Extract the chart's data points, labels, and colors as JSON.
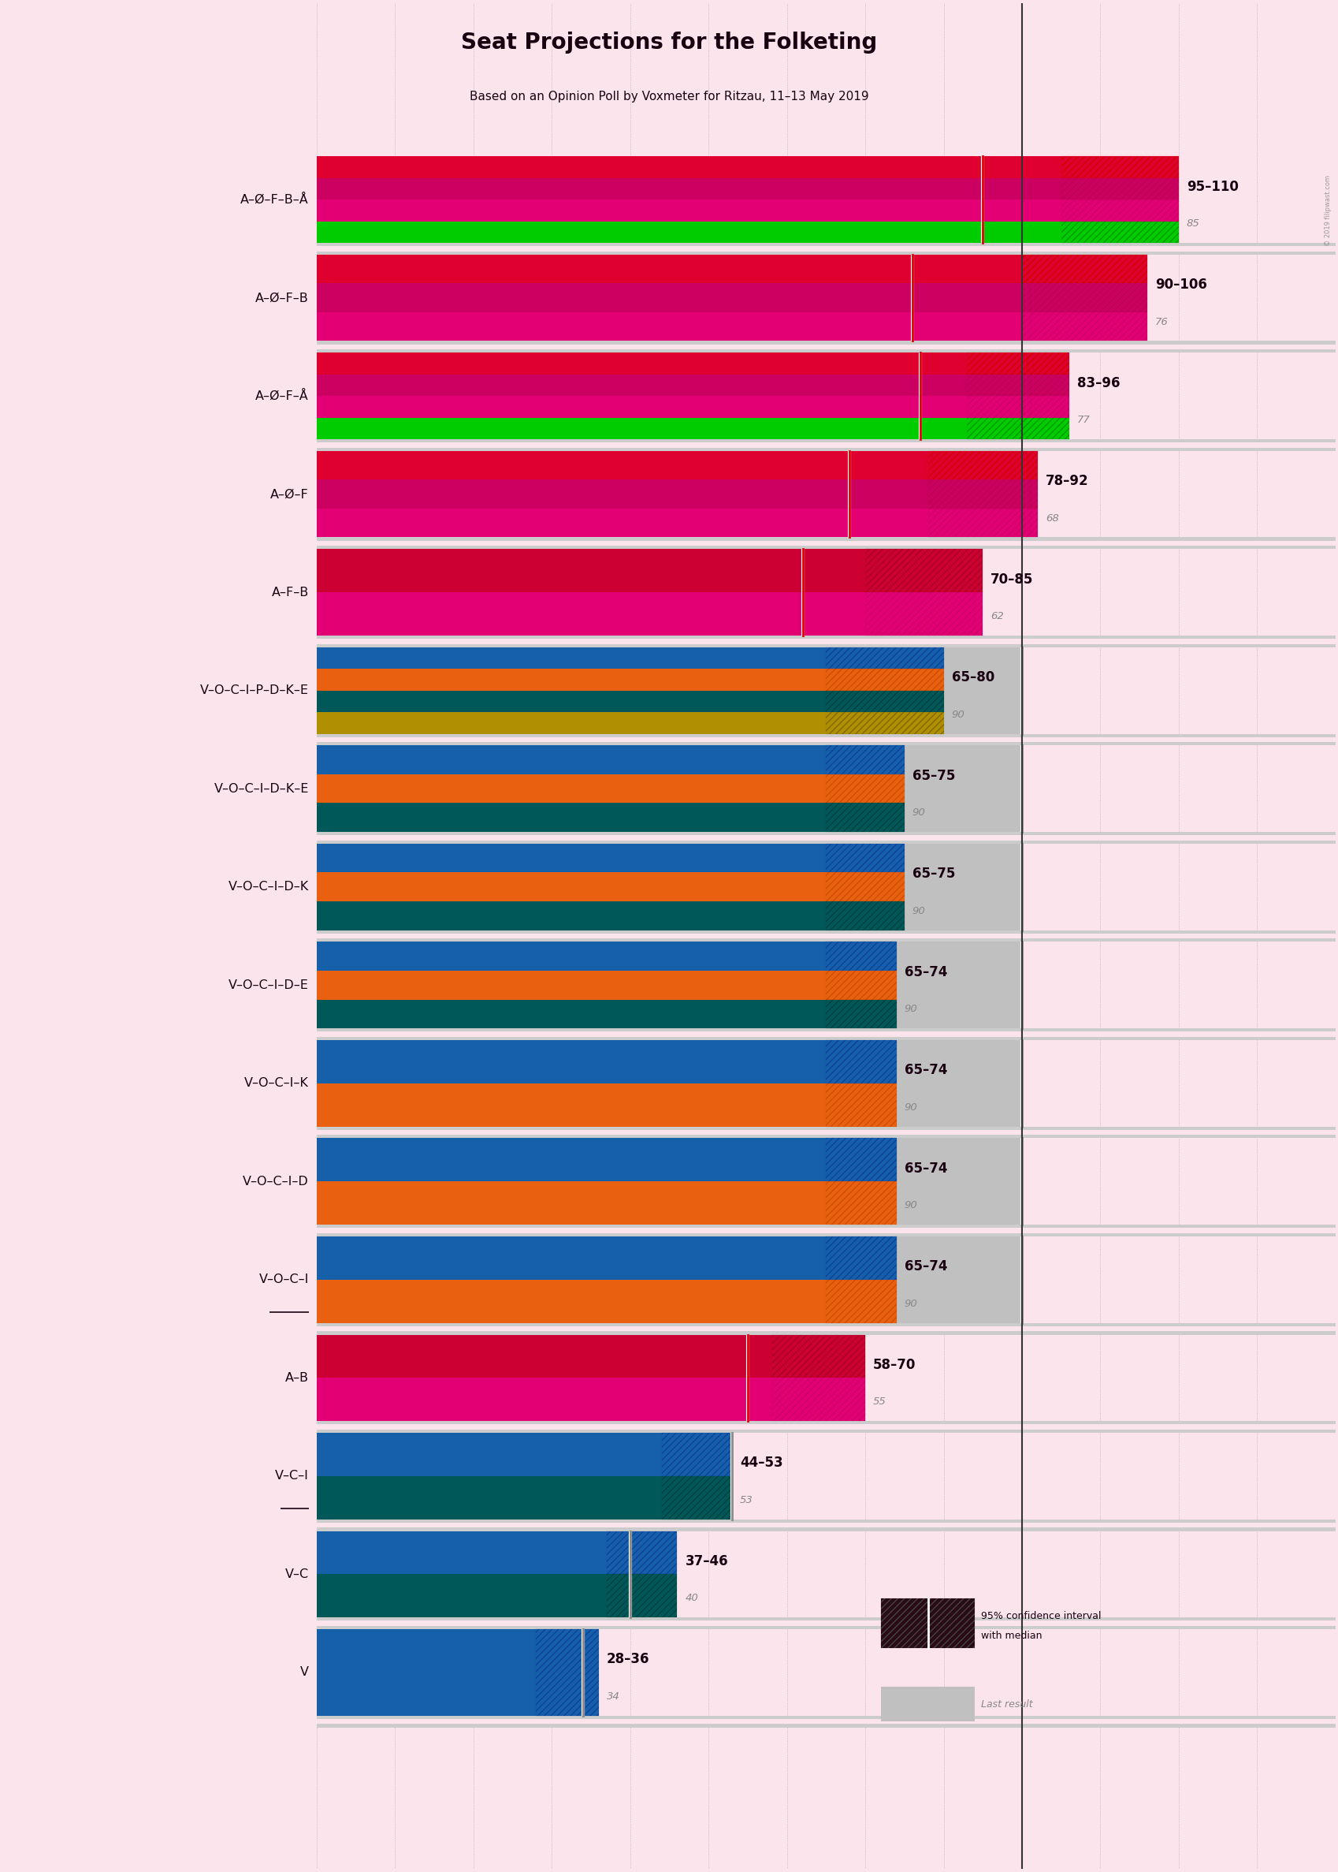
{
  "title": "Seat Projections for the Folketing",
  "subtitle": "Based on an Opinion Poll by Voxmeter for Ritzau, 11–13 May 2019",
  "copyright": "© 2019 filipwast.com",
  "background_color": "#fce4ec",
  "majority_line": 90,
  "x_min": 0,
  "x_max": 120,
  "coalitions": [
    {
      "label": "A–Ø–F–B–Å",
      "ci_low": 95,
      "ci_high": 110,
      "median": 85,
      "last_result": 85,
      "bar_colors": [
        "#e00030",
        "#cc0060",
        "#e20074",
        "#00cc00"
      ],
      "ci_hatch_colors": [
        "#cc0000",
        "#bb0055",
        "#cc0066",
        "#009900"
      ],
      "underline": false,
      "type": "left"
    },
    {
      "label": "A–Ø–F–B",
      "ci_low": 90,
      "ci_high": 106,
      "median": 76,
      "last_result": 76,
      "bar_colors": [
        "#e00030",
        "#cc0060",
        "#e20074"
      ],
      "ci_hatch_colors": [
        "#cc0000",
        "#bb0055",
        "#cc0066"
      ],
      "underline": false,
      "type": "left"
    },
    {
      "label": "A–Ø–F–Å",
      "ci_low": 83,
      "ci_high": 96,
      "median": 77,
      "last_result": 77,
      "bar_colors": [
        "#e00030",
        "#cc0060",
        "#e20074",
        "#00cc00"
      ],
      "ci_hatch_colors": [
        "#cc0000",
        "#bb0055",
        "#cc0066",
        "#009900"
      ],
      "underline": false,
      "type": "left"
    },
    {
      "label": "A–Ø–F",
      "ci_low": 78,
      "ci_high": 92,
      "median": 68,
      "last_result": 68,
      "bar_colors": [
        "#e00030",
        "#cc0060",
        "#e20074"
      ],
      "ci_hatch_colors": [
        "#cc0000",
        "#bb0055",
        "#cc0066"
      ],
      "underline": false,
      "type": "left"
    },
    {
      "label": "A–F–B",
      "ci_low": 70,
      "ci_high": 85,
      "median": 62,
      "last_result": 62,
      "bar_colors": [
        "#cc0033",
        "#e20074"
      ],
      "ci_hatch_colors": [
        "#aa0022",
        "#cc0066"
      ],
      "underline": false,
      "type": "left"
    },
    {
      "label": "V–O–C–I–P–D–K–E",
      "ci_low": 65,
      "ci_high": 80,
      "median": 90,
      "last_result": 90,
      "bar_colors": [
        "#1560a8",
        "#e86010",
        "#005858",
        "#b09000"
      ],
      "ci_hatch_colors": [
        "#1040a0",
        "#cc5000",
        "#004040",
        "#806800"
      ],
      "underline": false,
      "type": "right"
    },
    {
      "label": "V–O–C–I–D–K–E",
      "ci_low": 65,
      "ci_high": 75,
      "median": 90,
      "last_result": 90,
      "bar_colors": [
        "#1560a8",
        "#e86010",
        "#005858"
      ],
      "ci_hatch_colors": [
        "#1040a0",
        "#cc5000",
        "#004040"
      ],
      "underline": false,
      "type": "right"
    },
    {
      "label": "V–O–C–I–D–K",
      "ci_low": 65,
      "ci_high": 75,
      "median": 90,
      "last_result": 90,
      "bar_colors": [
        "#1560a8",
        "#e86010",
        "#005858"
      ],
      "ci_hatch_colors": [
        "#1040a0",
        "#cc5000",
        "#004040"
      ],
      "underline": false,
      "type": "right"
    },
    {
      "label": "V–O–C–I–D–E",
      "ci_low": 65,
      "ci_high": 74,
      "median": 90,
      "last_result": 90,
      "bar_colors": [
        "#1560a8",
        "#e86010",
        "#005858"
      ],
      "ci_hatch_colors": [
        "#1040a0",
        "#cc5000",
        "#004040"
      ],
      "underline": false,
      "type": "right"
    },
    {
      "label": "V–O–C–I–K",
      "ci_low": 65,
      "ci_high": 74,
      "median": 90,
      "last_result": 90,
      "bar_colors": [
        "#1560a8",
        "#e86010"
      ],
      "ci_hatch_colors": [
        "#1040a0",
        "#cc5000"
      ],
      "underline": false,
      "type": "right"
    },
    {
      "label": "V–O–C–I–D",
      "ci_low": 65,
      "ci_high": 74,
      "median": 90,
      "last_result": 90,
      "bar_colors": [
        "#1560a8",
        "#e86010"
      ],
      "ci_hatch_colors": [
        "#1040a0",
        "#cc5000"
      ],
      "underline": false,
      "type": "right"
    },
    {
      "label": "V–O–C–I",
      "ci_low": 65,
      "ci_high": 74,
      "median": 90,
      "last_result": 90,
      "bar_colors": [
        "#1560a8",
        "#e86010"
      ],
      "ci_hatch_colors": [
        "#1040a0",
        "#cc5000"
      ],
      "underline": true,
      "type": "right"
    },
    {
      "label": "A–B",
      "ci_low": 58,
      "ci_high": 70,
      "median": 55,
      "last_result": 55,
      "bar_colors": [
        "#cc0033",
        "#e20074"
      ],
      "ci_hatch_colors": [
        "#aa0022",
        "#cc0066"
      ],
      "underline": false,
      "type": "left"
    },
    {
      "label": "V–C–I",
      "ci_low": 44,
      "ci_high": 53,
      "median": 53,
      "last_result": 53,
      "bar_colors": [
        "#1560a8",
        "#005858"
      ],
      "ci_hatch_colors": [
        "#1040a0",
        "#004040"
      ],
      "underline": true,
      "type": "right"
    },
    {
      "label": "V–C",
      "ci_low": 37,
      "ci_high": 46,
      "median": 40,
      "last_result": 40,
      "bar_colors": [
        "#1560a8",
        "#005858"
      ],
      "ci_hatch_colors": [
        "#1040a0",
        "#004040"
      ],
      "underline": false,
      "type": "right"
    },
    {
      "label": "V",
      "ci_low": 28,
      "ci_high": 36,
      "median": 34,
      "last_result": 34,
      "bar_colors": [
        "#1560a8"
      ],
      "ci_hatch_colors": [
        "#1040a0"
      ],
      "underline": false,
      "type": "right"
    }
  ]
}
